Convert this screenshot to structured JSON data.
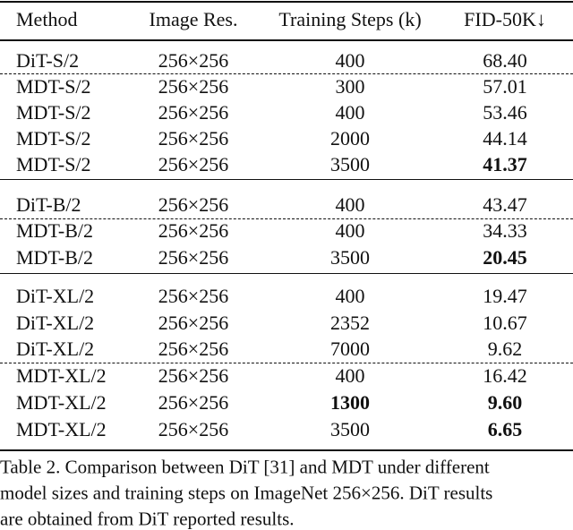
{
  "table": {
    "header": [
      "Method",
      "Image Res.",
      "Training Steps (k)",
      "FID-50K↓"
    ],
    "groups": [
      {
        "rows": [
          [
            "DiT-S/2",
            "256×256",
            "400",
            "68.40"
          ],
          [
            "MDT-S/2",
            "256×256",
            "300",
            "57.01"
          ],
          [
            "MDT-S/2",
            "256×256",
            "400",
            "53.46"
          ],
          [
            "MDT-S/2",
            "256×256",
            "2000",
            "44.14"
          ],
          [
            "MDT-S/2",
            "256×256",
            "3500",
            "41.37"
          ]
        ]
      },
      {
        "rows": [
          [
            "DiT-B/2",
            "256×256",
            "400",
            "43.47"
          ],
          [
            "MDT-B/2",
            "256×256",
            "400",
            "34.33"
          ],
          [
            "MDT-B/2",
            "256×256",
            "3500",
            "20.45"
          ]
        ]
      },
      {
        "rows": [
          [
            "DiT-XL/2",
            "256×256",
            "400",
            "19.47"
          ],
          [
            "DiT-XL/2",
            "256×256",
            "2352",
            "10.67"
          ],
          [
            "DiT-XL/2",
            "256×256",
            "7000",
            "9.62"
          ],
          [
            "MDT-XL/2",
            "256×256",
            "400",
            "16.42"
          ],
          [
            "MDT-XL/2",
            "256×256",
            "1300",
            "9.60"
          ],
          [
            "MDT-XL/2",
            "256×256",
            "3500",
            "6.65"
          ]
        ]
      }
    ]
  },
  "caption": {
    "lines": [
      "Table 2. Comparison between DiT [31] and MDT under different",
      "model sizes and training steps on ImageNet 256×256. DiT results",
      "are obtained from DiT reported results."
    ]
  }
}
